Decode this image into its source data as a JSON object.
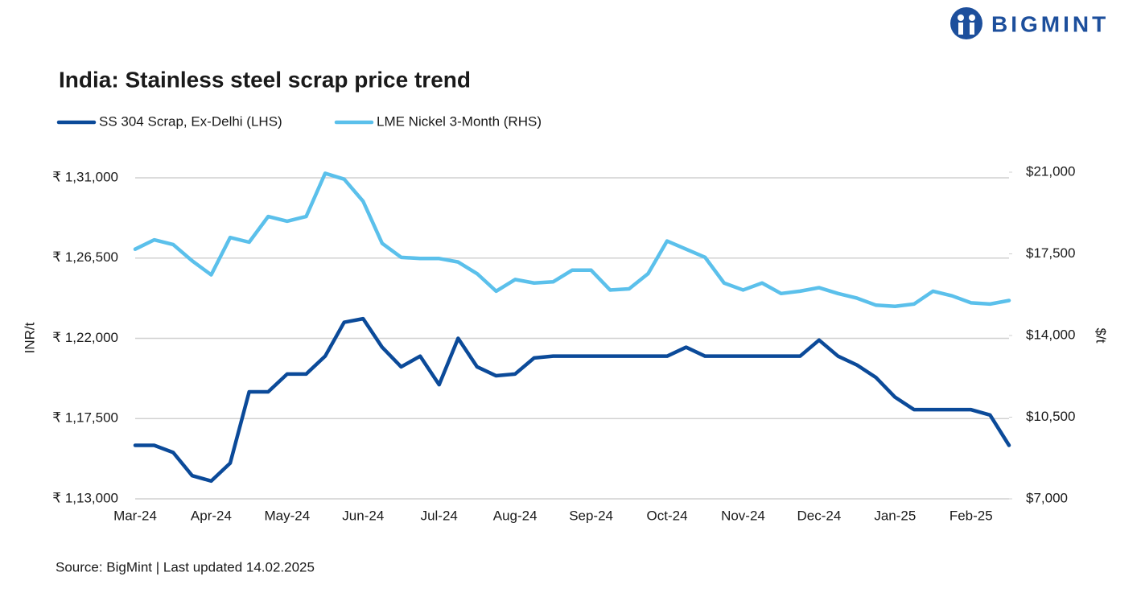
{
  "logo": "BIGMINT",
  "chart_data": {
    "type": "line",
    "title": "India: Stainless steel scrap price trend",
    "source": "Source: BigMint | Last updated 14.02.2025",
    "y_label": "INR/t",
    "y2_label": "$/t",
    "categories": [
      "Mar-24",
      null,
      null,
      null,
      "Apr-24",
      null,
      null,
      null,
      "May-24",
      null,
      null,
      null,
      "Jun-24",
      null,
      null,
      null,
      "Jul-24",
      null,
      null,
      null,
      "Aug-24",
      null,
      null,
      null,
      "Sep-24",
      null,
      null,
      null,
      "Oct-24",
      null,
      null,
      null,
      "Nov-24",
      null,
      null,
      null,
      "Dec-24",
      null,
      null,
      null,
      "Jan-25",
      null,
      null,
      null,
      "Feb-25",
      null,
      null
    ],
    "ylim": [
      113000,
      131000
    ],
    "yticks": [
      {
        "value": 113000,
        "label": "₹ 1,13,000"
      },
      {
        "value": 117500,
        "label": "₹ 1,17,500"
      },
      {
        "value": 122000,
        "label": "₹ 1,22,000"
      },
      {
        "value": 126500,
        "label": "₹ 1,26,500"
      },
      {
        "value": 131000,
        "label": "₹ 1,31,000"
      }
    ],
    "y2lim": [
      7000,
      21000
    ],
    "y2ticks": [
      {
        "value": 7000,
        "label": "$7,000"
      },
      {
        "value": 10500,
        "label": "$10,500"
      },
      {
        "value": 14000,
        "label": "$14,000"
      },
      {
        "value": 17500,
        "label": "$17,500"
      },
      {
        "value": 21000,
        "label": "$21,000"
      }
    ],
    "grid": true,
    "legend": "top-left",
    "series": [
      {
        "name": "SS 304 Scrap, Ex-Delhi (LHS)",
        "color": "#0b4a99",
        "axis": "y",
        "values": [
          116000,
          116000,
          115600,
          114300,
          114000,
          115000,
          119000,
          119000,
          120000,
          120000,
          121000,
          122900,
          123100,
          121500,
          120400,
          121000,
          119400,
          122000,
          120400,
          119900,
          120000,
          120900,
          121000,
          121000,
          121000,
          121000,
          121000,
          121000,
          121000,
          121500,
          121000,
          121000,
          121000,
          121000,
          121000,
          121000,
          121900,
          121000,
          120500,
          119800,
          118700,
          118000,
          118000,
          118000,
          118000,
          117700,
          116000
        ]
      },
      {
        "name": "LME Nickel 3-Month (RHS)",
        "color": "#5bc0eb",
        "axis": "y2",
        "values": [
          17700,
          18100,
          17900,
          17200,
          16600,
          18200,
          18000,
          19100,
          18900,
          19100,
          20950,
          20700,
          19750,
          17950,
          17350,
          17300,
          17300,
          17150,
          16650,
          15900,
          16400,
          16250,
          16300,
          16800,
          16800,
          15950,
          16000,
          16650,
          18050,
          17700,
          17350,
          16250,
          15950,
          16250,
          15800,
          15900,
          16050,
          15800,
          15600,
          15300,
          15250,
          15350,
          15900,
          15700,
          15400,
          15350,
          15500
        ]
      }
    ]
  }
}
